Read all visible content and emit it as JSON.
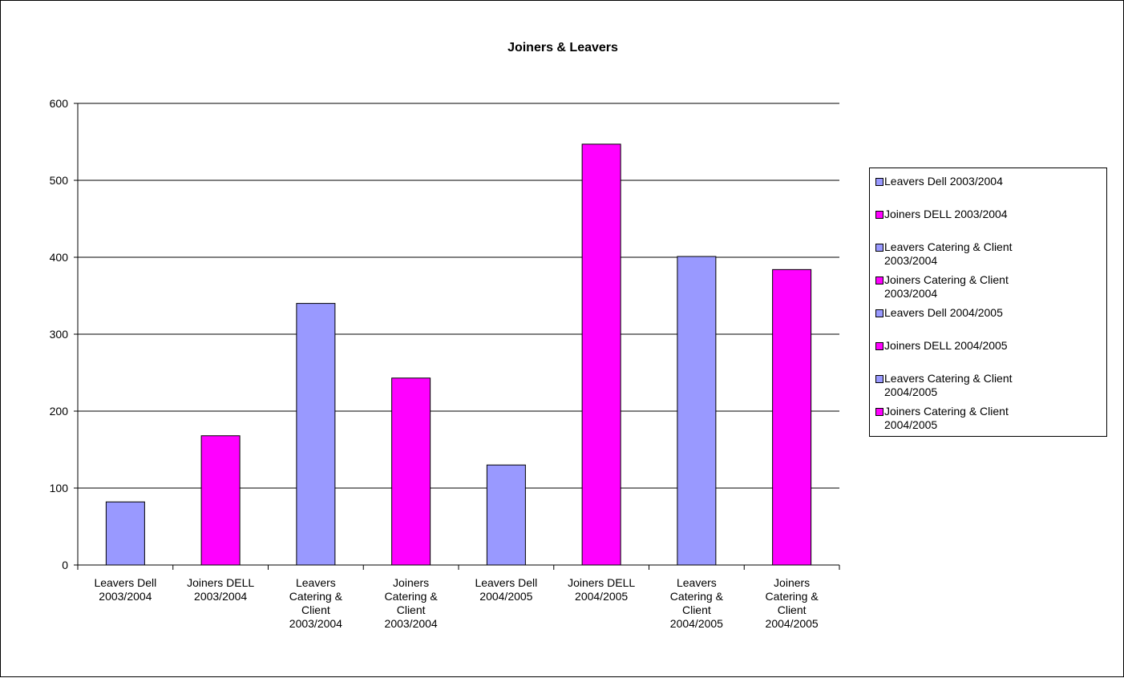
{
  "chart_data": {
    "type": "bar",
    "title": "Joiners & Leavers",
    "xlabel": "",
    "ylabel": "",
    "ylim": [
      0,
      600
    ],
    "yticks": [
      0,
      100,
      200,
      300,
      400,
      500,
      600
    ],
    "grid": true,
    "legend_position": "right",
    "categories": [
      "Leavers Dell 2003/2004",
      "Joiners DELL 2003/2004",
      "Leavers Catering & Client 2003/2004",
      "Joiners Catering & Client 2003/2004",
      "Leavers Dell 2004/2005",
      "Joiners DELL 2004/2005",
      "Leavers Catering & Client 2004/2005",
      "Joiners Catering & Client 2004/2005"
    ],
    "category_label_lines": [
      [
        "Leavers Dell",
        "2003/2004"
      ],
      [
        "Joiners DELL",
        "2003/2004"
      ],
      [
        "Leavers",
        "Catering &",
        "Client",
        "2003/2004"
      ],
      [
        "Joiners",
        "Catering &",
        "Client",
        "2003/2004"
      ],
      [
        "Leavers Dell",
        "2004/2005"
      ],
      [
        "Joiners DELL",
        "2004/2005"
      ],
      [
        "Leavers",
        "Catering &",
        "Client",
        "2004/2005"
      ],
      [
        "Joiners",
        "Catering &",
        "Client",
        "2004/2005"
      ]
    ],
    "values": [
      82,
      168,
      340,
      243,
      130,
      547,
      401,
      384
    ],
    "bar_colors": [
      "#9999ff",
      "#ff00ff",
      "#9999ff",
      "#ff00ff",
      "#9999ff",
      "#ff00ff",
      "#9999ff",
      "#ff00ff"
    ],
    "legend": [
      {
        "lines": [
          "Leavers Dell 2003/2004"
        ],
        "color": "#9999ff"
      },
      {
        "lines": [
          "Joiners DELL 2003/2004"
        ],
        "color": "#ff00ff"
      },
      {
        "lines": [
          "Leavers Catering & Client",
          "2003/2004"
        ],
        "color": "#9999ff"
      },
      {
        "lines": [
          "Joiners Catering & Client",
          "2003/2004"
        ],
        "color": "#ff00ff"
      },
      {
        "lines": [
          "Leavers Dell 2004/2005"
        ],
        "color": "#9999ff"
      },
      {
        "lines": [
          "Joiners DELL 2004/2005"
        ],
        "color": "#ff00ff"
      },
      {
        "lines": [
          "Leavers Catering & Client",
          "2004/2005"
        ],
        "color": "#9999ff"
      },
      {
        "lines": [
          "Joiners Catering & Client",
          "2004/2005"
        ],
        "color": "#ff00ff"
      }
    ]
  }
}
